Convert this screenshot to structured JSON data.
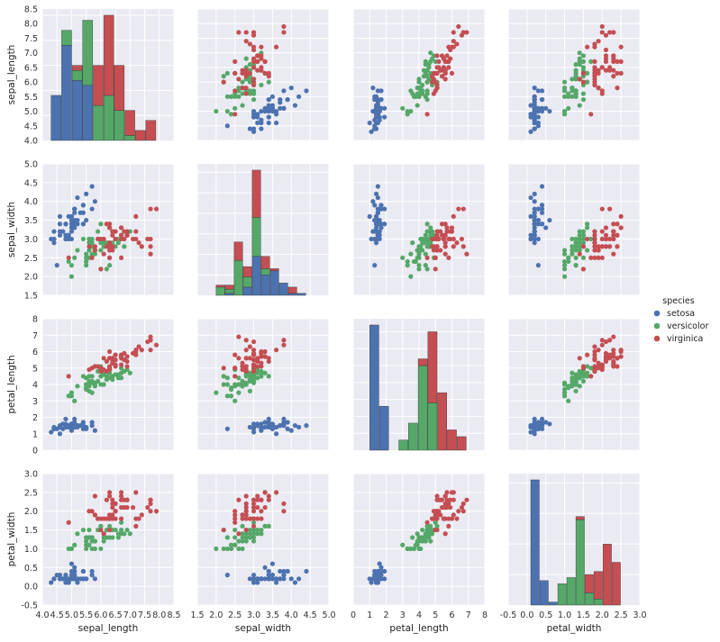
{
  "chart_data": {
    "type": "scatter",
    "variables": [
      "sepal_length",
      "sepal_width",
      "petal_length",
      "petal_width"
    ],
    "axes": {
      "sepal_length": {
        "label": "sepal_length",
        "range": [
          4.0,
          8.5
        ],
        "ticks": [
          "4.0",
          "4.5",
          "5.0",
          "5.5",
          "6.0",
          "6.5",
          "7.0",
          "7.5",
          "8.0",
          "8.5"
        ]
      },
      "sepal_width": {
        "label": "sepal_width",
        "range": [
          1.5,
          5.0
        ],
        "ticks": [
          "1.5",
          "2.0",
          "2.5",
          "3.0",
          "3.5",
          "4.0",
          "4.5",
          "5.0"
        ]
      },
      "petal_length": {
        "label": "petal_length",
        "range": [
          0,
          8
        ],
        "ticks": [
          "0",
          "1",
          "2",
          "3",
          "4",
          "5",
          "6",
          "7",
          "8"
        ]
      },
      "petal_width": {
        "label": "petal_width",
        "range": [
          -0.5,
          3.0
        ],
        "ticks": [
          "-0.5",
          "0.0",
          "0.5",
          "1.0",
          "1.5",
          "2.0",
          "2.5",
          "3.0"
        ]
      }
    },
    "grid": true,
    "legend": {
      "title": "species",
      "position": "right"
    },
    "series": [
      {
        "name": "setosa",
        "color": "#4c72b0"
      },
      {
        "name": "versicolor",
        "color": "#55a868"
      },
      {
        "name": "virginica",
        "color": "#c44e52"
      }
    ],
    "diagonal": {
      "type": "stacked-bar",
      "sepal_length": {
        "bin_edges": [
          4.3,
          4.66,
          5.02,
          5.38,
          5.74,
          6.1,
          6.46,
          6.82,
          7.18,
          7.54,
          7.9
        ],
        "counts": {
          "setosa": [
            9,
            19,
            12,
            11,
            0,
            0,
            0,
            0,
            0,
            0
          ],
          "versicolor": [
            0,
            3,
            2,
            13,
            7,
            9,
            6,
            1,
            0,
            0
          ],
          "virginica": [
            0,
            0,
            1,
            0,
            8,
            16,
            9,
            5,
            2,
            4
          ]
        }
      },
      "sepal_width": {
        "bin_edges": [
          2.0,
          2.24,
          2.48,
          2.72,
          2.96,
          3.2,
          3.44,
          3.68,
          3.92,
          4.16,
          4.4
        ],
        "counts": {
          "setosa": [
            0,
            1,
            0,
            4,
            19,
            10,
            12,
            6,
            1,
            1
          ],
          "versicolor": [
            4,
            2,
            17,
            5,
            19,
            3,
            0,
            0,
            0,
            0
          ],
          "virginica": [
            1,
            2,
            9,
            5,
            23,
            6,
            1,
            0,
            3,
            0
          ]
        }
      },
      "petal_length": {
        "bin_edges": [
          1.0,
          1.59,
          2.18,
          2.77,
          3.36,
          3.95,
          4.54,
          5.13,
          5.72,
          6.31,
          6.9
        ],
        "counts": {
          "setosa": [
            37,
            13,
            0,
            0,
            0,
            0,
            0,
            0,
            0,
            0
          ],
          "versicolor": [
            0,
            0,
            0,
            3,
            8,
            25,
            14,
            0,
            0,
            0
          ],
          "virginica": [
            0,
            0,
            0,
            0,
            0,
            2,
            21,
            17,
            6,
            4
          ]
        }
      },
      "petal_width": {
        "bin_edges": [
          0.1,
          0.34,
          0.58,
          0.82,
          1.06,
          1.3,
          1.54,
          1.78,
          2.02,
          2.26,
          2.5
        ],
        "counts": {
          "setosa": [
            41,
            8,
            1,
            0,
            0,
            0,
            0,
            0,
            0,
            0
          ],
          "versicolor": [
            0,
            0,
            0,
            7,
            9,
            28,
            4,
            2,
            0,
            0
          ],
          "virginica": [
            0,
            0,
            0,
            0,
            0,
            1,
            6,
            9,
            20,
            14
          ]
        }
      }
    },
    "points": {
      "setosa": {
        "sepal_length": [
          5.1,
          4.9,
          4.7,
          4.6,
          5.0,
          5.4,
          4.6,
          5.0,
          4.4,
          4.9,
          5.4,
          4.8,
          4.8,
          4.3,
          5.8,
          5.7,
          5.4,
          5.1,
          5.7,
          5.1,
          5.4,
          5.1,
          4.6,
          5.1,
          4.8,
          5.0,
          5.0,
          5.2,
          5.2,
          4.7,
          4.8,
          5.4,
          5.2,
          5.5,
          4.9,
          5.0,
          5.5,
          4.9,
          4.4,
          5.1,
          5.0,
          4.5,
          4.4,
          5.0,
          5.1,
          4.8,
          5.1,
          4.6,
          5.3,
          5.0
        ],
        "sepal_width": [
          3.5,
          3.0,
          3.2,
          3.1,
          3.6,
          3.9,
          3.4,
          3.4,
          2.9,
          3.1,
          3.7,
          3.4,
          3.0,
          3.0,
          4.0,
          4.4,
          3.9,
          3.5,
          3.8,
          3.8,
          3.4,
          3.7,
          3.6,
          3.3,
          3.4,
          3.0,
          3.4,
          3.5,
          3.4,
          3.2,
          3.1,
          3.4,
          4.1,
          4.2,
          3.1,
          3.2,
          3.5,
          3.6,
          3.0,
          3.4,
          3.5,
          2.3,
          3.2,
          3.5,
          3.8,
          3.0,
          3.8,
          3.2,
          3.7,
          3.3
        ],
        "petal_length": [
          1.4,
          1.4,
          1.3,
          1.5,
          1.4,
          1.7,
          1.4,
          1.5,
          1.4,
          1.5,
          1.5,
          1.6,
          1.4,
          1.1,
          1.2,
          1.5,
          1.3,
          1.4,
          1.7,
          1.5,
          1.7,
          1.5,
          1.0,
          1.7,
          1.9,
          1.6,
          1.6,
          1.5,
          1.4,
          1.6,
          1.6,
          1.5,
          1.5,
          1.4,
          1.5,
          1.2,
          1.3,
          1.4,
          1.3,
          1.5,
          1.3,
          1.3,
          1.3,
          1.6,
          1.9,
          1.4,
          1.6,
          1.4,
          1.5,
          1.4
        ],
        "petal_width": [
          0.2,
          0.2,
          0.2,
          0.2,
          0.2,
          0.4,
          0.3,
          0.2,
          0.2,
          0.1,
          0.2,
          0.2,
          0.1,
          0.1,
          0.2,
          0.4,
          0.4,
          0.3,
          0.3,
          0.3,
          0.2,
          0.4,
          0.2,
          0.5,
          0.2,
          0.2,
          0.4,
          0.2,
          0.2,
          0.2,
          0.2,
          0.4,
          0.1,
          0.2,
          0.2,
          0.2,
          0.2,
          0.1,
          0.2,
          0.2,
          0.3,
          0.3,
          0.2,
          0.6,
          0.4,
          0.3,
          0.2,
          0.2,
          0.2,
          0.2
        ]
      },
      "versicolor": {
        "sepal_length": [
          7.0,
          6.4,
          6.9,
          5.5,
          6.5,
          5.7,
          6.3,
          4.9,
          6.6,
          5.2,
          5.0,
          5.9,
          6.0,
          6.1,
          5.6,
          6.7,
          5.6,
          5.8,
          6.2,
          5.6,
          5.9,
          6.1,
          6.3,
          6.1,
          6.4,
          6.6,
          6.8,
          6.7,
          6.0,
          5.7,
          5.5,
          5.5,
          5.8,
          6.0,
          5.4,
          6.0,
          6.7,
          6.3,
          5.6,
          5.5,
          5.5,
          6.1,
          5.8,
          5.0,
          5.6,
          5.7,
          5.7,
          6.2,
          5.1,
          5.7
        ],
        "sepal_width": [
          3.2,
          3.2,
          3.1,
          2.3,
          2.8,
          2.8,
          3.3,
          2.4,
          2.9,
          2.7,
          2.0,
          3.0,
          2.2,
          2.9,
          2.9,
          3.1,
          3.0,
          2.7,
          2.2,
          2.5,
          3.2,
          2.8,
          2.5,
          2.8,
          2.9,
          3.0,
          2.8,
          3.0,
          2.9,
          2.6,
          2.4,
          2.4,
          2.7,
          2.7,
          3.0,
          3.4,
          3.1,
          2.3,
          3.0,
          2.5,
          2.6,
          3.0,
          2.6,
          2.3,
          2.7,
          3.0,
          2.9,
          2.9,
          2.5,
          2.8
        ],
        "petal_length": [
          4.7,
          4.5,
          4.9,
          4.0,
          4.6,
          4.5,
          4.7,
          3.3,
          4.6,
          3.9,
          3.5,
          4.2,
          4.0,
          4.7,
          3.6,
          4.4,
          4.5,
          4.1,
          4.5,
          3.9,
          4.8,
          4.0,
          4.9,
          4.7,
          4.3,
          4.4,
          4.8,
          5.0,
          4.5,
          3.5,
          3.8,
          3.7,
          3.9,
          5.1,
          4.5,
          4.5,
          4.7,
          4.4,
          4.1,
          4.0,
          4.4,
          4.6,
          4.0,
          3.3,
          4.2,
          4.2,
          4.2,
          4.3,
          3.0,
          4.1
        ],
        "petal_width": [
          1.4,
          1.5,
          1.5,
          1.3,
          1.5,
          1.3,
          1.6,
          1.0,
          1.3,
          1.4,
          1.0,
          1.5,
          1.0,
          1.4,
          1.3,
          1.4,
          1.5,
          1.0,
          1.5,
          1.1,
          1.8,
          1.3,
          1.5,
          1.2,
          1.3,
          1.4,
          1.4,
          1.7,
          1.5,
          1.0,
          1.1,
          1.0,
          1.2,
          1.6,
          1.5,
          1.6,
          1.5,
          1.3,
          1.3,
          1.3,
          1.2,
          1.4,
          1.2,
          1.0,
          1.3,
          1.2,
          1.3,
          1.3,
          1.1,
          1.3
        ]
      },
      "virginica": {
        "sepal_length": [
          6.3,
          5.8,
          7.1,
          6.3,
          6.5,
          7.6,
          4.9,
          7.3,
          6.7,
          7.2,
          6.5,
          6.4,
          6.8,
          5.7,
          5.8,
          6.4,
          6.5,
          7.7,
          7.7,
          6.0,
          6.9,
          5.6,
          7.7,
          6.3,
          6.7,
          7.2,
          6.2,
          6.1,
          6.4,
          7.2,
          7.4,
          7.9,
          6.4,
          6.3,
          6.1,
          7.7,
          6.3,
          6.4,
          6.0,
          6.9,
          6.7,
          6.9,
          5.8,
          6.8,
          6.7,
          6.7,
          6.3,
          6.5,
          6.2,
          5.9
        ],
        "sepal_width": [
          3.3,
          2.7,
          3.0,
          2.9,
          3.0,
          3.0,
          2.5,
          2.9,
          2.5,
          3.6,
          3.2,
          2.7,
          3.0,
          2.5,
          2.8,
          3.2,
          3.0,
          3.8,
          2.6,
          2.2,
          3.2,
          2.8,
          2.8,
          2.7,
          3.3,
          3.2,
          2.8,
          3.0,
          2.8,
          3.0,
          2.8,
          3.8,
          2.8,
          2.8,
          2.6,
          3.0,
          3.4,
          3.1,
          3.0,
          3.1,
          3.1,
          3.1,
          2.7,
          3.2,
          3.3,
          3.0,
          2.5,
          3.0,
          3.4,
          3.0
        ],
        "petal_length": [
          6.0,
          5.1,
          5.9,
          5.6,
          5.8,
          6.6,
          4.5,
          6.3,
          5.8,
          6.1,
          5.1,
          5.3,
          5.5,
          5.0,
          5.1,
          5.3,
          5.5,
          6.7,
          6.9,
          5.0,
          5.7,
          4.9,
          6.7,
          4.9,
          5.7,
          6.0,
          4.8,
          4.9,
          5.6,
          5.8,
          6.1,
          6.4,
          5.6,
          5.1,
          5.6,
          6.1,
          5.6,
          5.5,
          4.8,
          5.4,
          5.6,
          5.1,
          5.1,
          5.9,
          5.7,
          5.2,
          5.0,
          5.2,
          5.4,
          5.1
        ],
        "petal_width": [
          2.5,
          1.9,
          2.1,
          1.8,
          2.2,
          2.1,
          1.7,
          1.8,
          1.8,
          2.5,
          2.0,
          1.9,
          2.1,
          2.0,
          2.4,
          2.3,
          1.8,
          2.2,
          2.3,
          1.5,
          2.3,
          2.0,
          2.0,
          1.8,
          2.1,
          1.8,
          1.8,
          1.8,
          2.1,
          1.6,
          1.9,
          2.0,
          2.2,
          1.5,
          1.4,
          2.3,
          2.4,
          1.8,
          1.8,
          2.1,
          2.4,
          2.3,
          1.9,
          2.3,
          2.5,
          2.3,
          1.9,
          2.0,
          2.3,
          1.8
        ]
      }
    }
  }
}
